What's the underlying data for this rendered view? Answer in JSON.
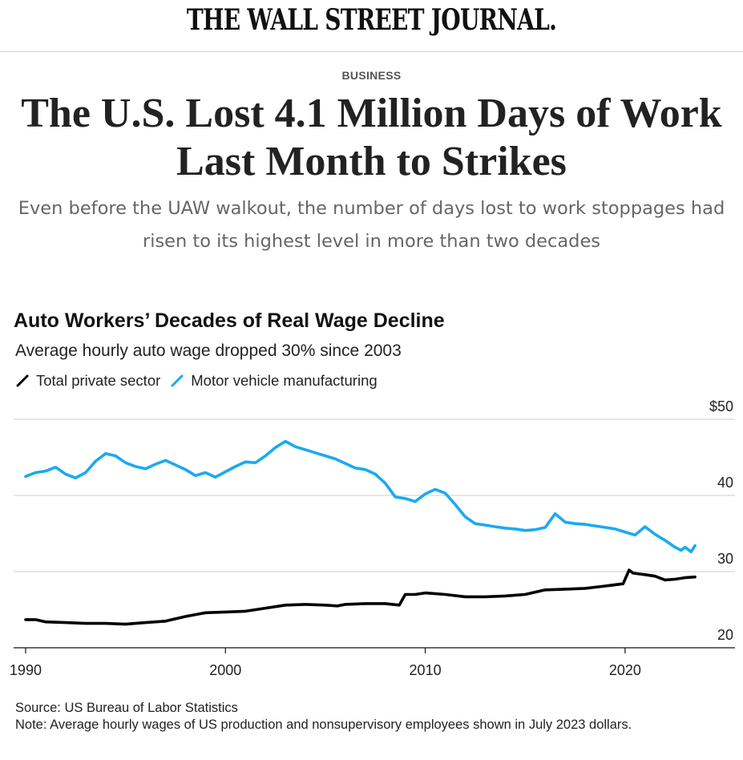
{
  "masthead": "THE WALL STREET JOURNAL.",
  "section": "BUSINESS",
  "headline": "The U.S. Lost 4.1 Million Days of Work Last Month to Strikes",
  "dek": "Even before the UAW walkout, the number of days lost to work stoppages had risen to its highest level in more than two decades",
  "chart_data": {
    "type": "line",
    "title": "Auto Workers’ Decades of Real Wage Decline",
    "subtitle": "Average hourly auto wage dropped 30% since 2003",
    "xlabel": "",
    "ylabel": "",
    "xlim": [
      1989.4,
      2025.5
    ],
    "ylim": [
      20,
      50
    ],
    "x_ticks": [
      1990,
      2000,
      2010,
      2020
    ],
    "x_tick_labels": [
      "1990",
      "2000",
      "2010",
      "2020"
    ],
    "y_ticks": [
      20,
      30,
      40,
      50
    ],
    "y_tick_labels": [
      "20",
      "30",
      "40",
      "$50"
    ],
    "grid": true,
    "legend_position": "top-left",
    "series": [
      {
        "name": "Total private sector",
        "color": "#000000",
        "x": [
          1990,
          1990.5,
          1991,
          1992,
          1993,
          1994,
          1995,
          1996,
          1997,
          1998,
          1999,
          2000,
          2001,
          2002,
          2003,
          2004,
          2005,
          2005.6,
          2006,
          2007,
          2008,
          2008.7,
          2009,
          2009.5,
          2010,
          2011,
          2012,
          2013,
          2014,
          2015,
          2016,
          2017,
          2018,
          2019,
          2019.9,
          2020.2,
          2020.4,
          2020.7,
          2021,
          2021.5,
          2022,
          2022.5,
          2023,
          2023.5
        ],
        "y": [
          23.7,
          23.7,
          23.4,
          23.3,
          23.2,
          23.2,
          23.1,
          23.3,
          23.5,
          24.1,
          24.6,
          24.7,
          24.8,
          25.2,
          25.6,
          25.7,
          25.6,
          25.5,
          25.7,
          25.8,
          25.8,
          25.6,
          27.0,
          27.0,
          27.2,
          27.0,
          26.7,
          26.7,
          26.8,
          27.0,
          27.6,
          27.7,
          27.8,
          28.1,
          28.4,
          30.2,
          29.8,
          29.7,
          29.6,
          29.4,
          28.9,
          29.0,
          29.2,
          29.3
        ]
      },
      {
        "name": "Motor vehicle manufacturing",
        "color": "#1aaaf0",
        "x": [
          1990,
          1990.5,
          1991,
          1991.5,
          1992,
          1992.5,
          1993,
          1993.5,
          1994,
          1994.5,
          1995,
          1995.5,
          1996,
          1996.5,
          1997,
          1997.5,
          1998,
          1998.5,
          1999,
          1999.5,
          2000,
          2000.5,
          2001,
          2001.5,
          2002,
          2002.5,
          2003,
          2003.5,
          2004,
          2004.5,
          2005,
          2005.5,
          2006,
          2006.5,
          2007,
          2007.5,
          2008,
          2008.5,
          2009,
          2009.5,
          2010,
          2010.5,
          2011,
          2011.5,
          2012,
          2012.5,
          2013,
          2013.5,
          2014,
          2014.5,
          2015,
          2015.5,
          2016,
          2016.5,
          2017,
          2017.5,
          2018,
          2018.5,
          2019,
          2019.5,
          2020,
          2020.5,
          2021,
          2021.5,
          2022,
          2022.5,
          2022.8,
          2023,
          2023.3,
          2023.5
        ],
        "y": [
          42.5,
          43.0,
          43.2,
          43.7,
          42.8,
          42.3,
          43.0,
          44.5,
          45.5,
          45.2,
          44.3,
          43.8,
          43.5,
          44.1,
          44.6,
          44.0,
          43.4,
          42.6,
          43.0,
          42.4,
          43.1,
          43.8,
          44.4,
          44.3,
          45.2,
          46.3,
          47.1,
          46.4,
          46.0,
          45.6,
          45.2,
          44.8,
          44.2,
          43.6,
          43.4,
          42.8,
          41.6,
          39.8,
          39.6,
          39.2,
          40.2,
          40.8,
          40.3,
          38.8,
          37.2,
          36.3,
          36.1,
          35.9,
          35.7,
          35.6,
          35.4,
          35.5,
          35.8,
          37.6,
          36.5,
          36.3,
          36.2,
          36.0,
          35.8,
          35.6,
          35.2,
          34.8,
          35.9,
          34.9,
          34.1,
          33.2,
          32.8,
          33.2,
          32.6,
          33.4
        ]
      }
    ]
  },
  "source": "Source: US Bureau of Labor Statistics",
  "note": "Note: Average hourly wages of US production and nonsupervisory employees shown in July 2023 dollars."
}
